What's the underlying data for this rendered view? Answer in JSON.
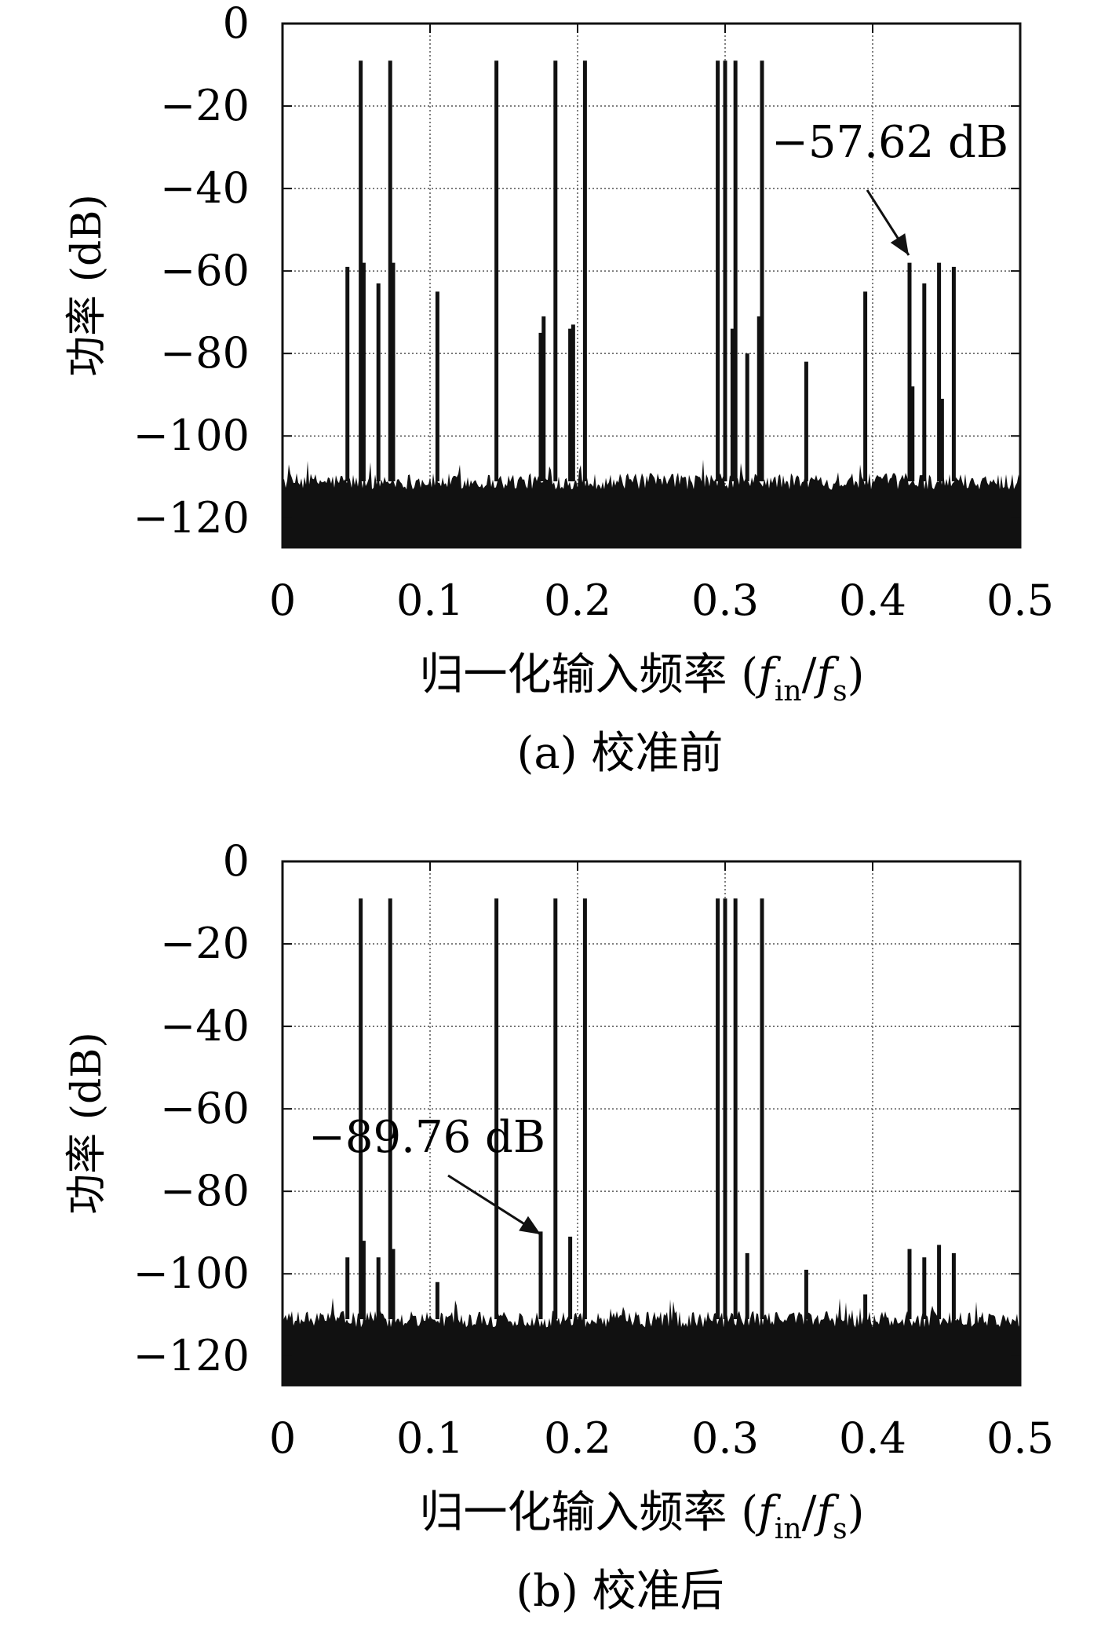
{
  "chart_data": [
    {
      "type": "bar",
      "caption": "(a) 校准前",
      "xlabel": "归一化输入频率 (f_in/f_s)",
      "xlabel_main": "归一化输入频率 (",
      "xlabel_f1": "f",
      "xlabel_sub1": "in",
      "xlabel_slash": "/",
      "xlabel_f2": "f",
      "xlabel_sub2": "s",
      "xlabel_close": ")",
      "ylabel": "功率 (dB)",
      "xlim": [
        0,
        0.5
      ],
      "ylim": [
        -127,
        0
      ],
      "grid": true,
      "xticks": [
        "0",
        "0.1",
        "0.2",
        "0.3",
        "0.4",
        "0.5"
      ],
      "yticks": [
        "0",
        "−20",
        "−40",
        "−60",
        "−80",
        "−100",
        "−120"
      ],
      "noise_floor_db": -111,
      "peaks": [
        {
          "x": 0.044,
          "y": -59
        },
        {
          "x": 0.053,
          "y": -9
        },
        {
          "x": 0.055,
          "y": -58
        },
        {
          "x": 0.065,
          "y": -63
        },
        {
          "x": 0.073,
          "y": -9
        },
        {
          "x": 0.075,
          "y": -58
        },
        {
          "x": 0.105,
          "y": -65
        },
        {
          "x": 0.145,
          "y": -9
        },
        {
          "x": 0.175,
          "y": -75
        },
        {
          "x": 0.177,
          "y": -71
        },
        {
          "x": 0.185,
          "y": -9
        },
        {
          "x": 0.195,
          "y": -74
        },
        {
          "x": 0.197,
          "y": -73
        },
        {
          "x": 0.205,
          "y": -9
        },
        {
          "x": 0.295,
          "y": -9
        },
        {
          "x": 0.3,
          "y": -9
        },
        {
          "x": 0.305,
          "y": -74
        },
        {
          "x": 0.307,
          "y": -9
        },
        {
          "x": 0.315,
          "y": -80
        },
        {
          "x": 0.323,
          "y": -71
        },
        {
          "x": 0.325,
          "y": -9
        },
        {
          "x": 0.355,
          "y": -82
        },
        {
          "x": 0.395,
          "y": -65
        },
        {
          "x": 0.425,
          "y": -58
        },
        {
          "x": 0.427,
          "y": -88
        },
        {
          "x": 0.435,
          "y": -63
        },
        {
          "x": 0.445,
          "y": -58
        },
        {
          "x": 0.447,
          "y": -91
        },
        {
          "x": 0.455,
          "y": -59
        }
      ],
      "annotation": {
        "text": "−57.62 dB",
        "x": 0.425,
        "y": -57.62
      }
    },
    {
      "type": "bar",
      "caption": "(b) 校准后",
      "xlabel": "归一化输入频率 (f_in/f_s)",
      "xlabel_main": "归一化输入频率 (",
      "xlabel_f1": "f",
      "xlabel_sub1": "in",
      "xlabel_slash": "/",
      "xlabel_f2": "f",
      "xlabel_sub2": "s",
      "xlabel_close": ")",
      "ylabel": "功率 (dB)",
      "xlim": [
        0,
        0.5
      ],
      "ylim": [
        -127,
        0
      ],
      "grid": true,
      "xticks": [
        "0",
        "0.1",
        "0.2",
        "0.3",
        "0.4",
        "0.5"
      ],
      "yticks": [
        "0",
        "−20",
        "−40",
        "−60",
        "−80",
        "−100",
        "−120"
      ],
      "noise_floor_db": -111,
      "peaks": [
        {
          "x": 0.044,
          "y": -96
        },
        {
          "x": 0.053,
          "y": -9
        },
        {
          "x": 0.055,
          "y": -92
        },
        {
          "x": 0.065,
          "y": -96
        },
        {
          "x": 0.073,
          "y": -9
        },
        {
          "x": 0.075,
          "y": -94
        },
        {
          "x": 0.105,
          "y": -102
        },
        {
          "x": 0.145,
          "y": -9
        },
        {
          "x": 0.175,
          "y": -89.76
        },
        {
          "x": 0.185,
          "y": -9
        },
        {
          "x": 0.195,
          "y": -91
        },
        {
          "x": 0.205,
          "y": -9
        },
        {
          "x": 0.295,
          "y": -9
        },
        {
          "x": 0.3,
          "y": -9
        },
        {
          "x": 0.307,
          "y": -9
        },
        {
          "x": 0.315,
          "y": -95
        },
        {
          "x": 0.325,
          "y": -9
        },
        {
          "x": 0.355,
          "y": -99
        },
        {
          "x": 0.395,
          "y": -105
        },
        {
          "x": 0.425,
          "y": -94
        },
        {
          "x": 0.435,
          "y": -96
        },
        {
          "x": 0.445,
          "y": -93
        },
        {
          "x": 0.455,
          "y": -95
        }
      ],
      "annotation": {
        "text": "−89.76 dB",
        "x": 0.175,
        "y": -89.76
      }
    }
  ]
}
